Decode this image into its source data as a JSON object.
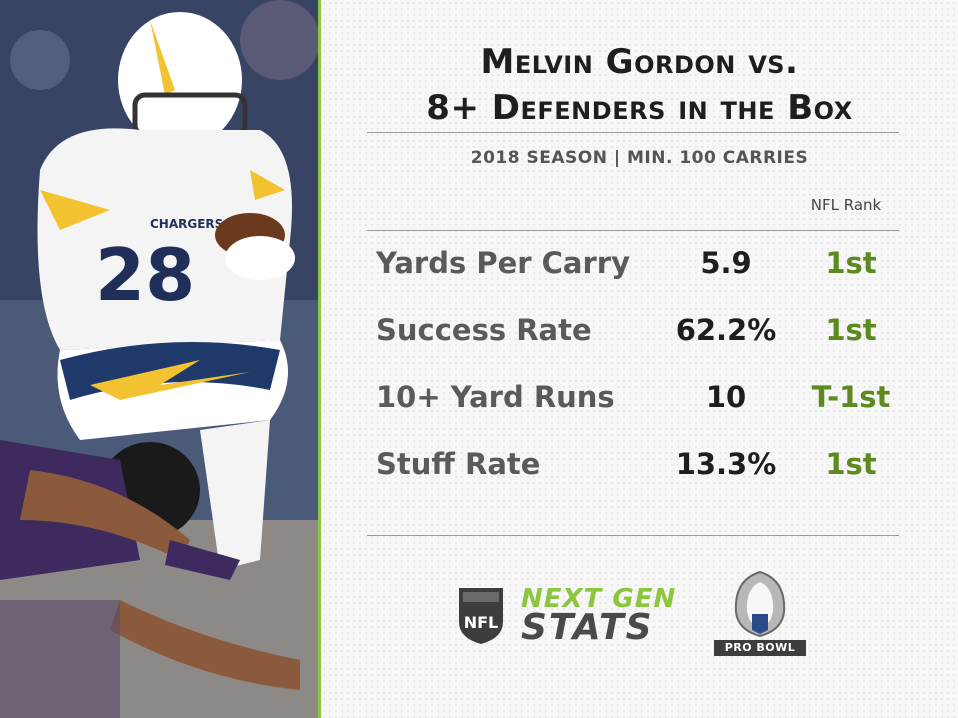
{
  "title": {
    "line1": "Melvin Gordon vs.",
    "line2": "8+ Defenders in the Box"
  },
  "subtitle": "2018 SEASON  |  MIN. 100 CARRIES",
  "rank_header": "NFL Rank",
  "stats": [
    {
      "label": "Yards Per Carry",
      "value": "5.9",
      "rank": "1st"
    },
    {
      "label": "Success Rate",
      "value": "62.2%",
      "rank": "1st"
    },
    {
      "label": "10+ Yard Runs",
      "value": "10",
      "rank": "T-1st"
    },
    {
      "label": "Stuff Rate",
      "value": "13.3%",
      "rank": "1st"
    }
  ],
  "logos": {
    "nfl_shield_text": "NFL",
    "ngs_line1": "NEXT GEN",
    "ngs_line2": "STATS",
    "probowl_text": "PRO BOWL"
  },
  "photo": {
    "jersey_team": "CHARGERS",
    "jersey_number": "28"
  },
  "colors": {
    "accent_green": "#8cc63f",
    "rank_green": "#5d8a1f",
    "divider": "#8cc63f"
  },
  "icons": [
    "nfl-shield-icon",
    "next-gen-stats-logo",
    "pro-bowl-trophy-icon"
  ]
}
